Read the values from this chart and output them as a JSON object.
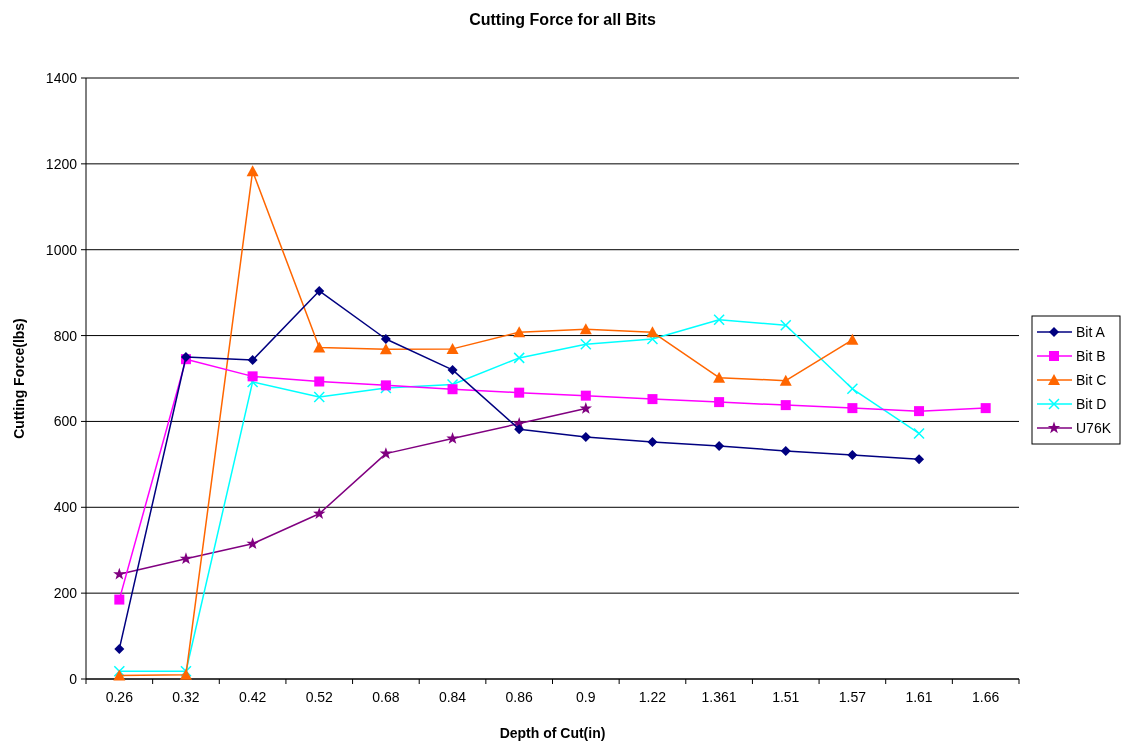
{
  "chart_data": {
    "type": "line",
    "title": "Cutting Force for all Bits",
    "xlabel": "Depth of Cut(in)",
    "ylabel": "Cutting Force(lbs)",
    "categories": [
      "0.26",
      "0.32",
      "0.42",
      "0.52",
      "0.68",
      "0.84",
      "0.86",
      "0.9",
      "1.22",
      "1.361",
      "1.51",
      "1.57",
      "1.61",
      "1.66"
    ],
    "ylim": [
      0,
      1400
    ],
    "yticks": [
      0,
      200,
      400,
      600,
      800,
      1000,
      1200,
      1400
    ],
    "grid": "y",
    "legend": "right",
    "series": [
      {
        "name": "Bit A",
        "color": "#000080",
        "marker": "diamond",
        "values": [
          70,
          750,
          743,
          904,
          792,
          720,
          582,
          564,
          552,
          543,
          531,
          522,
          512,
          null
        ]
      },
      {
        "name": "Bit B",
        "color": "#ff00ff",
        "marker": "square",
        "values": [
          185,
          745,
          705,
          693,
          684,
          675,
          667,
          660,
          652,
          645,
          638,
          631,
          624,
          631
        ]
      },
      {
        "name": "Bit C",
        "color": "#ff6600",
        "marker": "triangle",
        "values": [
          8,
          10,
          1183,
          772,
          768,
          769,
          808,
          815,
          808,
          702,
          695,
          790,
          null,
          null
        ]
      },
      {
        "name": "Bit D",
        "color": "#00ffff",
        "marker": "cross",
        "values": [
          18,
          18,
          692,
          657,
          678,
          686,
          748,
          780,
          792,
          837,
          824,
          676,
          572,
          null
        ]
      },
      {
        "name": "U76K",
        "color": "#800080",
        "marker": "star",
        "values": [
          244,
          280,
          315,
          385,
          525,
          560,
          595,
          630,
          null,
          null,
          null,
          null,
          null,
          null
        ]
      }
    ]
  }
}
